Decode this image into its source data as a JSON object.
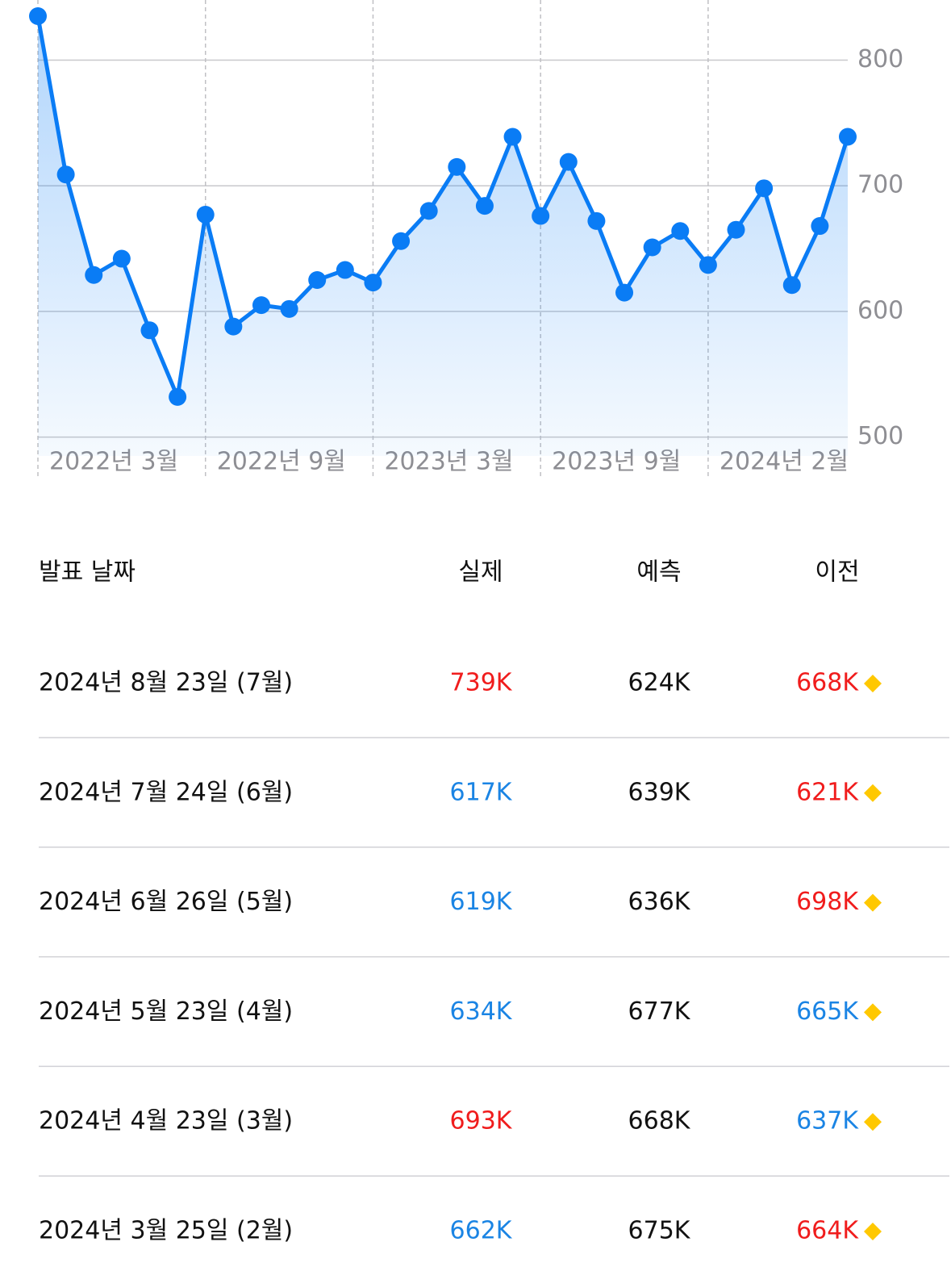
{
  "chart_data": {
    "type": "line",
    "categories": [
      "2022년 3월",
      null,
      null,
      null,
      null,
      null,
      "2022년 9월",
      null,
      null,
      null,
      null,
      null,
      "2023년 3월",
      null,
      null,
      null,
      null,
      null,
      "2023년 9월",
      null,
      null,
      null,
      null,
      null,
      "2024년 2월",
      null,
      null,
      null,
      null,
      null
    ],
    "values": [
      835,
      709,
      629,
      642,
      585,
      532,
      677,
      588,
      605,
      602,
      625,
      633,
      623,
      656,
      680,
      715,
      684,
      739,
      676,
      719,
      672,
      615,
      651,
      664,
      637,
      665,
      698,
      621,
      668,
      739
    ],
    "color": "#0a7cf5",
    "ylim": [
      485,
      835
    ],
    "yticks": [
      500,
      600,
      700,
      800
    ],
    "grid": true
  },
  "table": {
    "header": [
      "발표 날짜",
      "실제",
      "예측",
      "이전"
    ],
    "rows": [
      {
        "date": "2024년 8월 23일 (7월)",
        "actual": "739K",
        "forecast": "624K",
        "previous": "668K",
        "actual_color": "#f01c1c",
        "previous_color": "#f01c1c"
      },
      {
        "date": "2024년 7월 24일 (6월)",
        "actual": "617K",
        "forecast": "639K",
        "previous": "621K",
        "actual_color": "#1a84e4",
        "previous_color": "#f01c1c"
      },
      {
        "date": "2024년 6월 26일 (5월)",
        "actual": "619K",
        "forecast": "636K",
        "previous": "698K",
        "actual_color": "#1a84e4",
        "previous_color": "#f01c1c"
      },
      {
        "date": "2024년 5월 23일 (4월)",
        "actual": "634K",
        "forecast": "677K",
        "previous": "665K",
        "actual_color": "#1a84e4",
        "previous_color": "#1a84e4"
      },
      {
        "date": "2024년 4월 23일 (3월)",
        "actual": "693K",
        "forecast": "668K",
        "previous": "637K",
        "actual_color": "#f01c1c",
        "previous_color": "#1a84e4"
      },
      {
        "date": "2024년 3월 25일 (2월)",
        "actual": "662K",
        "forecast": "675K",
        "previous": "664K",
        "actual_color": "#1a84e4",
        "previous_color": "#f01c1c"
      }
    ]
  }
}
